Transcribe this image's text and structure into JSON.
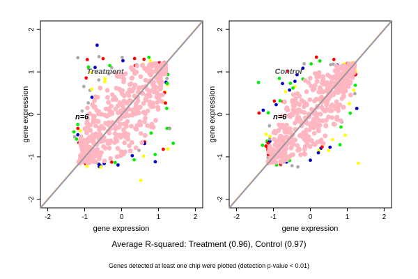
{
  "chart_data": [
    {
      "type": "scatter",
      "title": "Treatment",
      "annotation": "n=6",
      "xlabel": "gene expression",
      "ylabel": "gene expression",
      "xlim": [
        -2.2,
        2.2
      ],
      "ylim": [
        -2.2,
        2.2
      ],
      "xticks": [
        "-2",
        "-1",
        "0",
        "1",
        "2"
      ],
      "yticks": [
        "-2",
        "-1",
        "0",
        "1",
        "2"
      ],
      "reference_lines": [
        "y = x"
      ],
      "cloud": {
        "main_axis_extent": [
          -1.15,
          1.2
        ],
        "spread": 0.32
      },
      "colors": [
        "#ffb6c1",
        "#00ee00",
        "#ffff00",
        "#ff0000",
        "#0000cc",
        "#aaaaaa"
      ]
    },
    {
      "type": "scatter",
      "title": "Control",
      "annotation": "n=6",
      "xlabel": "gene expression",
      "ylabel": "gene expression",
      "xlim": [
        -2.2,
        2.2
      ],
      "ylim": [
        -2.2,
        2.2
      ],
      "xticks": [
        "-2",
        "-1",
        "0",
        "1",
        "2"
      ],
      "yticks": [
        "-2",
        "-1",
        "0",
        "1",
        "2"
      ],
      "reference_lines": [
        "y = x"
      ],
      "cloud": {
        "main_axis_extent": [
          -1.15,
          1.2
        ],
        "spread": 0.28
      },
      "colors": [
        "#ffb6c1",
        "#00ee00",
        "#ffff00",
        "#ff0000",
        "#0000cc",
        "#aaaaaa"
      ]
    }
  ],
  "captions": {
    "summary": "Average R-squared: Treatment (0.96), Control (0.97)",
    "note": "Genes detected at least one chip were plotted (detection p-value < 0.01)"
  }
}
